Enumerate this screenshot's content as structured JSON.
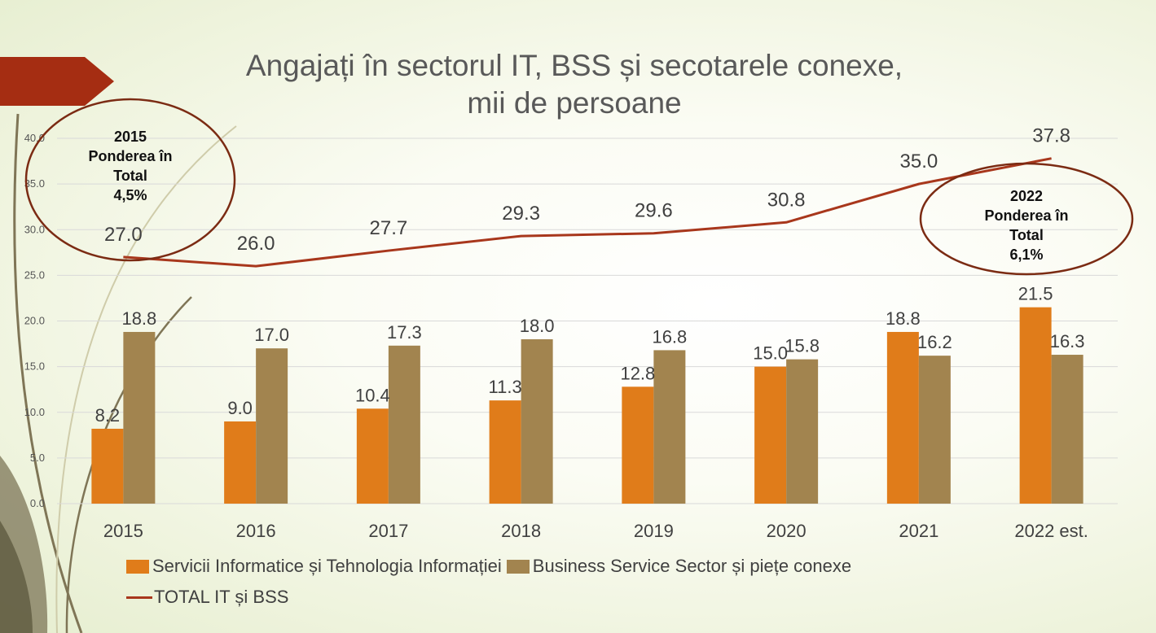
{
  "title": {
    "line1": "Angajați în sectorul IT, BSS și secotarele conexe,",
    "line2": "mii de persoane"
  },
  "colors": {
    "it": "#e07c1a",
    "bss": "#a2844f",
    "total": "#a8371c",
    "accent_banner": "#a52d12",
    "ellipse": "#7b2b13"
  },
  "annotations": {
    "left": {
      "year": "2015",
      "line2": "Ponderea în",
      "line3": "Total",
      "value": "4,5%"
    },
    "right": {
      "year": "2022",
      "line2": "Ponderea în",
      "line3": "Total",
      "value": "6,1%"
    }
  },
  "legend": {
    "it": "Servicii Informatice și Tehnologia Informației",
    "bss": "Business Service Sector și piețe conexe",
    "total": "TOTAL IT și BSS"
  },
  "chart_data": {
    "type": "bar",
    "categories": [
      "2015",
      "2016",
      "2017",
      "2018",
      "2019",
      "2020",
      "2021",
      "2022 est."
    ],
    "series": [
      {
        "name": "Servicii Informatice și Tehnologia Informației",
        "type": "bar",
        "values": [
          8.2,
          9.0,
          10.4,
          11.3,
          12.8,
          15.0,
          18.8,
          21.5
        ]
      },
      {
        "name": "Business Service Sector și piețe conexe",
        "type": "bar",
        "values": [
          18.8,
          17.0,
          17.3,
          18.0,
          16.8,
          15.8,
          16.2,
          16.3
        ]
      },
      {
        "name": "TOTAL IT și BSS",
        "type": "line",
        "values": [
          27.0,
          26.0,
          27.7,
          29.3,
          29.6,
          30.8,
          35.0,
          37.8
        ]
      }
    ],
    "ylim": [
      0,
      40
    ],
    "yticks": [
      "0.0",
      "5.0",
      "10.0",
      "15.0",
      "20.0",
      "25.0",
      "30.0",
      "35.0",
      "40.0"
    ],
    "grid": true,
    "legend_position": "bottom"
  }
}
